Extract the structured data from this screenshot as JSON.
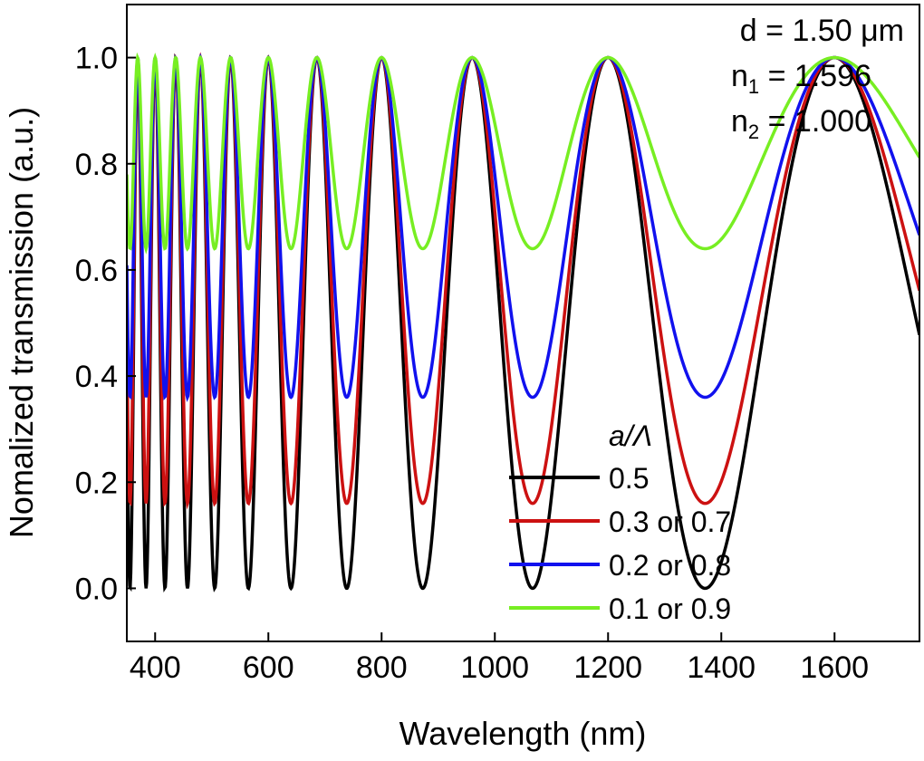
{
  "chart_data": {
    "type": "line",
    "xlabel": "Wavelength (nm)",
    "ylabel": "Nomalized transmission (a.u.)",
    "xlim": [
      350,
      1750
    ],
    "ylim": [
      -0.1,
      1.1
    ],
    "xticks": [
      400,
      600,
      800,
      1000,
      1200,
      1400,
      1600
    ],
    "xtick_labels": [
      "400",
      "600",
      "800",
      "1000",
      "1200",
      "1400",
      "1600"
    ],
    "yticks": [
      0.0,
      0.2,
      0.4,
      0.6,
      0.8,
      1.0
    ],
    "ytick_labels": [
      "0.0",
      "0.2",
      "0.4",
      "0.6",
      "0.8",
      "1.0"
    ],
    "grid": false,
    "annotations": {
      "d": "d = 1.50 μm",
      "n1_prefix": "n",
      "n1_sub": "1",
      "n1_suffix": " = 1.596",
      "n2_prefix": "n",
      "n2_sub": "2",
      "n2_suffix": " = 1.000"
    },
    "legend": {
      "title": "a/Λ",
      "placement": "lower-center"
    },
    "series": [
      {
        "name": "0.5",
        "color": "#000000",
        "min": 0.0
      },
      {
        "name": "0.3 or 0.7",
        "color": "#cc1111",
        "min": 0.16
      },
      {
        "name": "0.2 or 0.8",
        "color": "#1111ee",
        "min": 0.36
      },
      {
        "name": "0.1 or 0.9",
        "color": "#77ee22",
        "min": 0.64
      }
    ],
    "x": [
      350,
      360,
      370,
      380,
      390,
      400,
      410,
      420,
      430,
      440,
      450,
      460,
      470,
      480,
      490,
      500,
      510,
      520,
      530,
      540,
      550,
      560,
      570,
      580,
      590,
      600,
      610,
      620,
      630,
      640,
      650,
      660,
      670,
      680,
      690,
      700,
      710,
      720,
      730,
      740,
      750,
      760,
      770,
      780,
      790,
      800,
      820,
      840,
      860,
      880,
      900,
      920,
      940,
      960,
      980,
      1000,
      1020,
      1040,
      1060,
      1080,
      1100,
      1120,
      1140,
      1160,
      1180,
      1200,
      1220,
      1240,
      1260,
      1280,
      1300,
      1320,
      1340,
      1360,
      1380,
      1400,
      1420,
      1440,
      1460,
      1480,
      1500,
      1520,
      1540,
      1560,
      1580,
      1600,
      1620,
      1640,
      1660,
      1680,
      1700,
      1720,
      1740,
      1750
    ]
  }
}
